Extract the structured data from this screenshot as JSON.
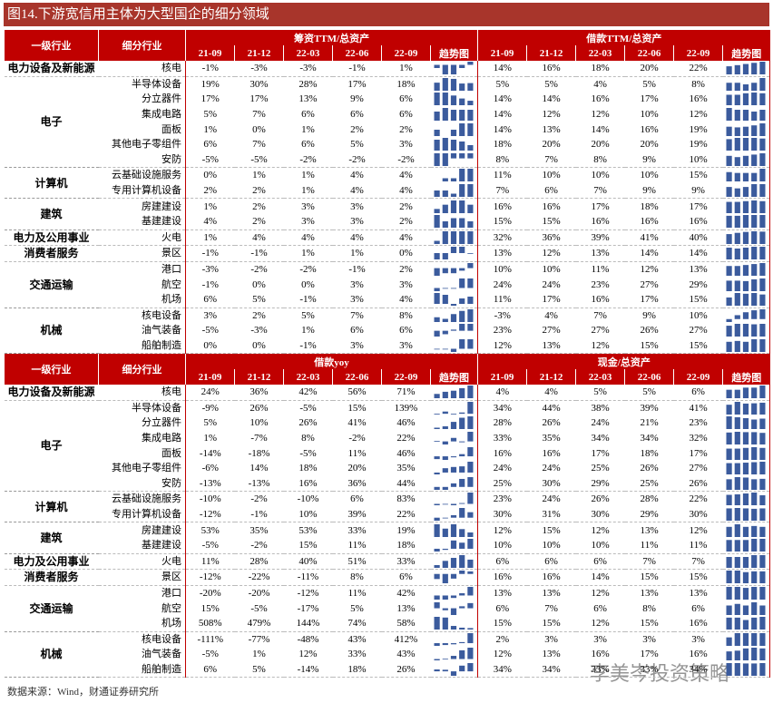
{
  "title": "图14.下游宽信用主体为大型国企的细分领域",
  "columns": [
    "一级行业",
    "细分行业"
  ],
  "periods": [
    "21-09",
    "21-12",
    "22-03",
    "22-06",
    "22-09"
  ],
  "trend": "趋势图",
  "sections": [
    {
      "metrics": [
        "筹资TTM/总资产",
        "借款TTM/总资产"
      ],
      "groups": [
        {
          "industry": "电力设备及新能源",
          "rows": [
            {
              "sub": "核电",
              "m": [
                [
                  "-1%",
                  "-3%",
                  "-3%",
                  "-1%",
                  "1%"
                ],
                [
                  "14%",
                  "16%",
                  "18%",
                  "20%",
                  "22%"
                ]
              ]
            }
          ]
        },
        {
          "industry": "电子",
          "rows": [
            {
              "sub": "半导体设备",
              "m": [
                [
                  "19%",
                  "30%",
                  "28%",
                  "17%",
                  "18%"
                ],
                [
                  "5%",
                  "5%",
                  "4%",
                  "5%",
                  "8%"
                ]
              ]
            },
            {
              "sub": "分立器件",
              "m": [
                [
                  "17%",
                  "17%",
                  "13%",
                  "9%",
                  "6%"
                ],
                [
                  "14%",
                  "14%",
                  "16%",
                  "17%",
                  "16%"
                ]
              ]
            },
            {
              "sub": "集成电路",
              "m": [
                [
                  "5%",
                  "7%",
                  "6%",
                  "6%",
                  "6%"
                ],
                [
                  "14%",
                  "12%",
                  "12%",
                  "10%",
                  "12%"
                ]
              ]
            },
            {
              "sub": "面板",
              "m": [
                [
                  "1%",
                  "0%",
                  "1%",
                  "2%",
                  "2%"
                ],
                [
                  "14%",
                  "13%",
                  "14%",
                  "16%",
                  "19%"
                ]
              ]
            },
            {
              "sub": "其他电子零组件",
              "m": [
                [
                  "6%",
                  "7%",
                  "6%",
                  "5%",
                  "3%"
                ],
                [
                  "18%",
                  "20%",
                  "20%",
                  "20%",
                  "19%"
                ]
              ]
            },
            {
              "sub": "安防",
              "m": [
                [
                  "-5%",
                  "-5%",
                  "-2%",
                  "-2%",
                  "-2%"
                ],
                [
                  "8%",
                  "7%",
                  "8%",
                  "9%",
                  "10%"
                ]
              ]
            }
          ]
        },
        {
          "industry": "计算机",
          "rows": [
            {
              "sub": "云基础设施服务",
              "m": [
                [
                  "0%",
                  "1%",
                  "1%",
                  "4%",
                  "4%"
                ],
                [
                  "11%",
                  "10%",
                  "10%",
                  "10%",
                  "15%"
                ]
              ]
            },
            {
              "sub": "专用计算机设备",
              "m": [
                [
                  "2%",
                  "2%",
                  "1%",
                  "4%",
                  "4%"
                ],
                [
                  "7%",
                  "6%",
                  "7%",
                  "9%",
                  "9%"
                ]
              ]
            }
          ]
        },
        {
          "industry": "建筑",
          "rows": [
            {
              "sub": "房建建设",
              "m": [
                [
                  "1%",
                  "2%",
                  "3%",
                  "3%",
                  "2%"
                ],
                [
                  "16%",
                  "16%",
                  "17%",
                  "18%",
                  "17%"
                ]
              ]
            },
            {
              "sub": "基建建设",
              "m": [
                [
                  "4%",
                  "2%",
                  "3%",
                  "3%",
                  "2%"
                ],
                [
                  "15%",
                  "15%",
                  "16%",
                  "16%",
                  "16%"
                ]
              ]
            }
          ]
        },
        {
          "industry": "电力及公用事业",
          "rows": [
            {
              "sub": "火电",
              "m": [
                [
                  "1%",
                  "4%",
                  "4%",
                  "4%",
                  "4%"
                ],
                [
                  "32%",
                  "36%",
                  "39%",
                  "41%",
                  "40%"
                ]
              ]
            }
          ]
        },
        {
          "industry": "消费者服务",
          "rows": [
            {
              "sub": "景区",
              "m": [
                [
                  "-1%",
                  "-1%",
                  "1%",
                  "1%",
                  "0%"
                ],
                [
                  "13%",
                  "12%",
                  "13%",
                  "14%",
                  "14%"
                ]
              ]
            }
          ]
        },
        {
          "industry": "交通运输",
          "rows": [
            {
              "sub": "港口",
              "m": [
                [
                  "-3%",
                  "-2%",
                  "-2%",
                  "-1%",
                  "2%"
                ],
                [
                  "10%",
                  "10%",
                  "11%",
                  "12%",
                  "13%"
                ]
              ]
            },
            {
              "sub": "航空",
              "m": [
                [
                  "-1%",
                  "0%",
                  "0%",
                  "3%",
                  "3%"
                ],
                [
                  "24%",
                  "24%",
                  "23%",
                  "27%",
                  "29%"
                ]
              ]
            },
            {
              "sub": "机场",
              "m": [
                [
                  "6%",
                  "5%",
                  "-1%",
                  "3%",
                  "4%"
                ],
                [
                  "11%",
                  "17%",
                  "16%",
                  "17%",
                  "15%"
                ]
              ]
            }
          ]
        },
        {
          "industry": "机械",
          "rows": [
            {
              "sub": "核电设备",
              "m": [
                [
                  "3%",
                  "2%",
                  "5%",
                  "7%",
                  "8%"
                ],
                [
                  "-3%",
                  "4%",
                  "7%",
                  "9%",
                  "10%"
                ]
              ]
            },
            {
              "sub": "油气装备",
              "m": [
                [
                  "-5%",
                  "-3%",
                  "1%",
                  "6%",
                  "6%"
                ],
                [
                  "23%",
                  "27%",
                  "27%",
                  "26%",
                  "27%"
                ]
              ]
            },
            {
              "sub": "船舶制造",
              "m": [
                [
                  "0%",
                  "0%",
                  "-1%",
                  "3%",
                  "3%"
                ],
                [
                  "12%",
                  "13%",
                  "12%",
                  "15%",
                  "15%"
                ]
              ]
            }
          ]
        }
      ]
    },
    {
      "metrics": [
        "借款yoy",
        "现金/总资产"
      ],
      "groups": [
        {
          "industry": "电力设备及新能源",
          "rows": [
            {
              "sub": "核电",
              "m": [
                [
                  "24%",
                  "36%",
                  "42%",
                  "56%",
                  "71%"
                ],
                [
                  "4%",
                  "4%",
                  "5%",
                  "5%",
                  "6%"
                ]
              ]
            }
          ]
        },
        {
          "industry": "电子",
          "rows": [
            {
              "sub": "半导体设备",
              "m": [
                [
                  "-9%",
                  "26%",
                  "-5%",
                  "15%",
                  "139%"
                ],
                [
                  "34%",
                  "44%",
                  "38%",
                  "39%",
                  "41%"
                ]
              ]
            },
            {
              "sub": "分立器件",
              "m": [
                [
                  "5%",
                  "10%",
                  "26%",
                  "41%",
                  "46%"
                ],
                [
                  "28%",
                  "26%",
                  "24%",
                  "21%",
                  "23%"
                ]
              ]
            },
            {
              "sub": "集成电路",
              "m": [
                [
                  "1%",
                  "-7%",
                  "8%",
                  "-2%",
                  "22%"
                ],
                [
                  "33%",
                  "35%",
                  "34%",
                  "34%",
                  "32%"
                ]
              ]
            },
            {
              "sub": "面板",
              "m": [
                [
                  "-14%",
                  "-18%",
                  "-5%",
                  "11%",
                  "46%"
                ],
                [
                  "16%",
                  "16%",
                  "17%",
                  "18%",
                  "17%"
                ]
              ]
            },
            {
              "sub": "其他电子零组件",
              "m": [
                [
                  "-6%",
                  "14%",
                  "18%",
                  "20%",
                  "35%"
                ],
                [
                  "24%",
                  "24%",
                  "25%",
                  "26%",
                  "27%"
                ]
              ]
            },
            {
              "sub": "安防",
              "m": [
                [
                  "-13%",
                  "-13%",
                  "16%",
                  "36%",
                  "44%"
                ],
                [
                  "25%",
                  "30%",
                  "29%",
                  "25%",
                  "26%"
                ]
              ]
            }
          ]
        },
        {
          "industry": "计算机",
          "rows": [
            {
              "sub": "云基础设施服务",
              "m": [
                [
                  "-10%",
                  "-2%",
                  "-10%",
                  "6%",
                  "83%"
                ],
                [
                  "23%",
                  "24%",
                  "26%",
                  "28%",
                  "22%"
                ]
              ]
            },
            {
              "sub": "专用计算机设备",
              "m": [
                [
                  "-12%",
                  "-1%",
                  "10%",
                  "39%",
                  "22%"
                ],
                [
                  "30%",
                  "31%",
                  "30%",
                  "29%",
                  "30%"
                ]
              ]
            }
          ]
        },
        {
          "industry": "建筑",
          "rows": [
            {
              "sub": "房建建设",
              "m": [
                [
                  "53%",
                  "35%",
                  "53%",
                  "33%",
                  "19%"
                ],
                [
                  "12%",
                  "15%",
                  "12%",
                  "13%",
                  "12%"
                ]
              ]
            },
            {
              "sub": "基建建设",
              "m": [
                [
                  "-5%",
                  "-2%",
                  "15%",
                  "11%",
                  "18%"
                ],
                [
                  "10%",
                  "10%",
                  "10%",
                  "11%",
                  "11%"
                ]
              ]
            }
          ]
        },
        {
          "industry": "电力及公用事业",
          "rows": [
            {
              "sub": "火电",
              "m": [
                [
                  "11%",
                  "28%",
                  "40%",
                  "51%",
                  "33%"
                ],
                [
                  "6%",
                  "6%",
                  "6%",
                  "7%",
                  "7%"
                ]
              ]
            }
          ]
        },
        {
          "industry": "消费者服务",
          "rows": [
            {
              "sub": "景区",
              "m": [
                [
                  "-12%",
                  "-22%",
                  "-11%",
                  "8%",
                  "6%"
                ],
                [
                  "16%",
                  "16%",
                  "14%",
                  "15%",
                  "15%"
                ]
              ]
            }
          ]
        },
        {
          "industry": "交通运输",
          "rows": [
            {
              "sub": "港口",
              "m": [
                [
                  "-20%",
                  "-20%",
                  "-12%",
                  "11%",
                  "42%"
                ],
                [
                  "13%",
                  "13%",
                  "12%",
                  "13%",
                  "13%"
                ]
              ]
            },
            {
              "sub": "航空",
              "m": [
                [
                  "15%",
                  "-5%",
                  "-17%",
                  "5%",
                  "13%"
                ],
                [
                  "6%",
                  "7%",
                  "6%",
                  "8%",
                  "6%"
                ]
              ]
            },
            {
              "sub": "机场",
              "m": [
                [
                  "508%",
                  "479%",
                  "144%",
                  "74%",
                  "58%"
                ],
                [
                  "15%",
                  "15%",
                  "12%",
                  "15%",
                  "16%"
                ]
              ]
            }
          ]
        },
        {
          "industry": "机械",
          "rows": [
            {
              "sub": "核电设备",
              "m": [
                [
                  "-111%",
                  "-77%",
                  "-48%",
                  "43%",
                  "412%"
                ],
                [
                  "2%",
                  "3%",
                  "3%",
                  "3%",
                  "3%"
                ]
              ]
            },
            {
              "sub": "油气装备",
              "m": [
                [
                  "-5%",
                  "1%",
                  "12%",
                  "33%",
                  "43%"
                ],
                [
                  "12%",
                  "13%",
                  "16%",
                  "17%",
                  "16%"
                ]
              ]
            },
            {
              "sub": "船舶制造",
              "m": [
                [
                  "6%",
                  "5%",
                  "-14%",
                  "18%",
                  "26%"
                ],
                [
                  "34%",
                  "34%",
                  "33%",
                  "33%",
                  "34%"
                ]
              ]
            }
          ]
        }
      ]
    }
  ],
  "source": "数据来源：Wind，财通证券研究所",
  "watermark": "李美岑投资策略"
}
